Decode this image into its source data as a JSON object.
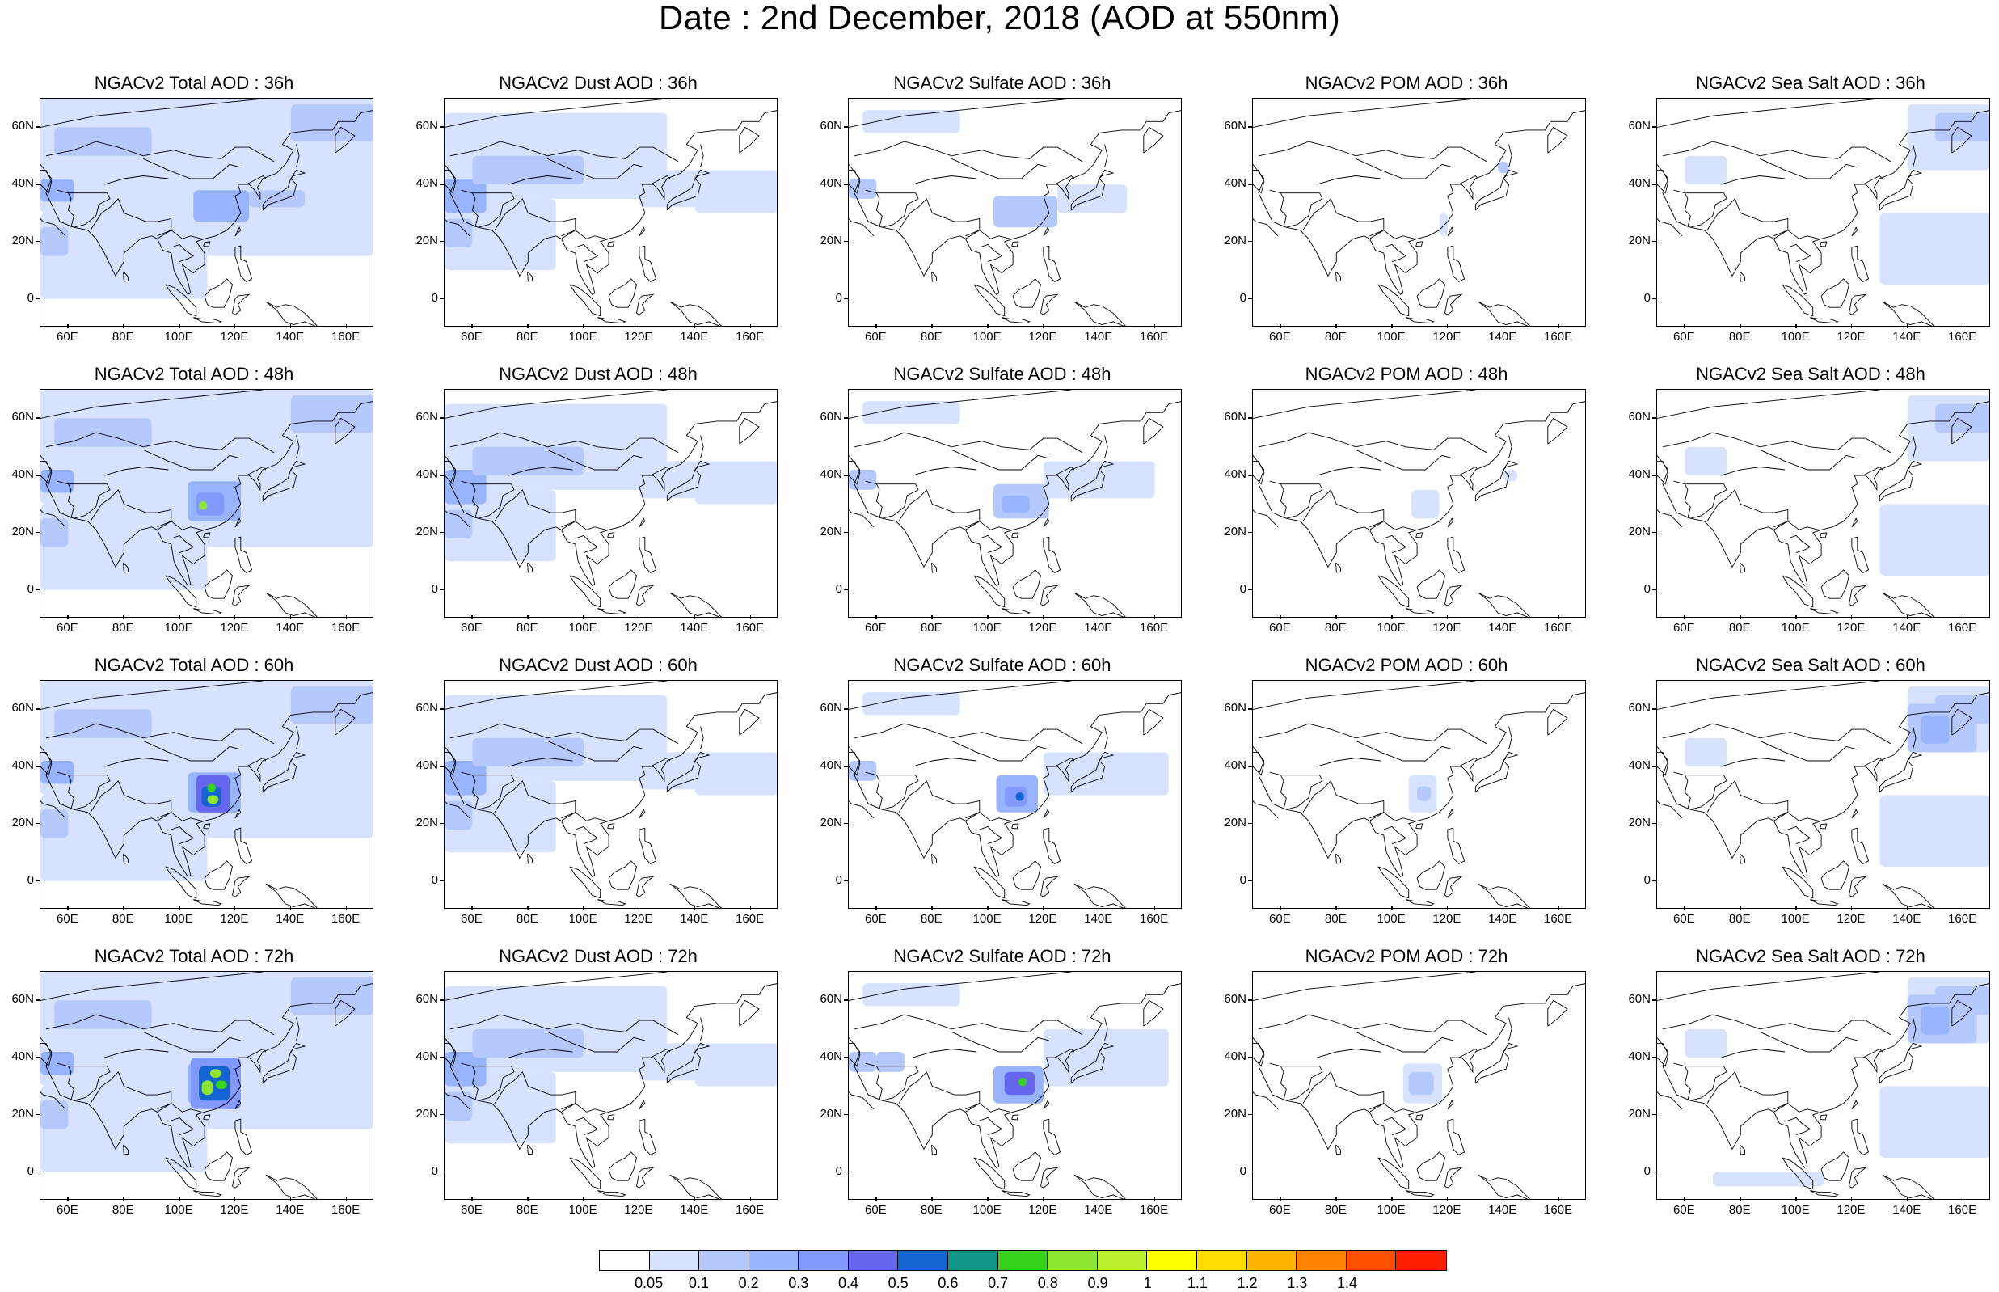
{
  "title": "Date : 2nd December, 2018 (AOD at 550nm)",
  "x_ticks": [
    "60E",
    "80E",
    "100E",
    "120E",
    "140E",
    "160E"
  ],
  "y_ticks": [
    "60N",
    "40N",
    "20N",
    "0"
  ],
  "panels": [
    {
      "title": "NGACv2 Total AOD : 36h",
      "species": "total",
      "hour": 36
    },
    {
      "title": "NGACv2 Dust AOD : 36h",
      "species": "dust",
      "hour": 36
    },
    {
      "title": "NGACv2 Sulfate AOD : 36h",
      "species": "sulfate",
      "hour": 36
    },
    {
      "title": "NGACv2 POM AOD : 36h",
      "species": "pom",
      "hour": 36
    },
    {
      "title": "NGACv2 Sea Salt AOD : 36h",
      "species": "seasalt",
      "hour": 36
    },
    {
      "title": "NGACv2 Total AOD : 48h",
      "species": "total",
      "hour": 48
    },
    {
      "title": "NGACv2 Dust AOD : 48h",
      "species": "dust",
      "hour": 48
    },
    {
      "title": "NGACv2 Sulfate AOD : 48h",
      "species": "sulfate",
      "hour": 48
    },
    {
      "title": "NGACv2 POM AOD : 48h",
      "species": "pom",
      "hour": 48
    },
    {
      "title": "NGACv2 Sea Salt AOD : 48h",
      "species": "seasalt",
      "hour": 48
    },
    {
      "title": "NGACv2 Total AOD : 60h",
      "species": "total",
      "hour": 60
    },
    {
      "title": "NGACv2 Dust AOD : 60h",
      "species": "dust",
      "hour": 60
    },
    {
      "title": "NGACv2 Sulfate AOD : 60h",
      "species": "sulfate",
      "hour": 60
    },
    {
      "title": "NGACv2 POM AOD : 60h",
      "species": "pom",
      "hour": 60
    },
    {
      "title": "NGACv2 Sea Salt AOD : 60h",
      "species": "seasalt",
      "hour": 60
    },
    {
      "title": "NGACv2 Total AOD : 72h",
      "species": "total",
      "hour": 72
    },
    {
      "title": "NGACv2 Dust AOD : 72h",
      "species": "dust",
      "hour": 72
    },
    {
      "title": "NGACv2 Sulfate AOD : 72h",
      "species": "sulfate",
      "hour": 72
    },
    {
      "title": "NGACv2 POM AOD : 72h",
      "species": "pom",
      "hour": 72
    },
    {
      "title": "NGACv2 Sea Salt  AOD : 72h",
      "species": "seasalt",
      "hour": 72
    }
  ],
  "colorbar": {
    "colors": [
      "#ffffff",
      "#d6e2ff",
      "#b5c9ff",
      "#99b4ff",
      "#8299ff",
      "#6666ee",
      "#1464d2",
      "#0f9687",
      "#37d21e",
      "#8ce632",
      "#bef032",
      "#ffff00",
      "#ffdc00",
      "#ffb400",
      "#ff8200",
      "#ff5000",
      "#ff1e00"
    ],
    "labels": [
      "0.05",
      "0.1",
      "0.2",
      "0.3",
      "0.4",
      "0.5",
      "0.6",
      "0.7",
      "0.8",
      "0.9",
      "1",
      "1.1",
      "1.2",
      "1.3",
      "1.4"
    ]
  }
}
